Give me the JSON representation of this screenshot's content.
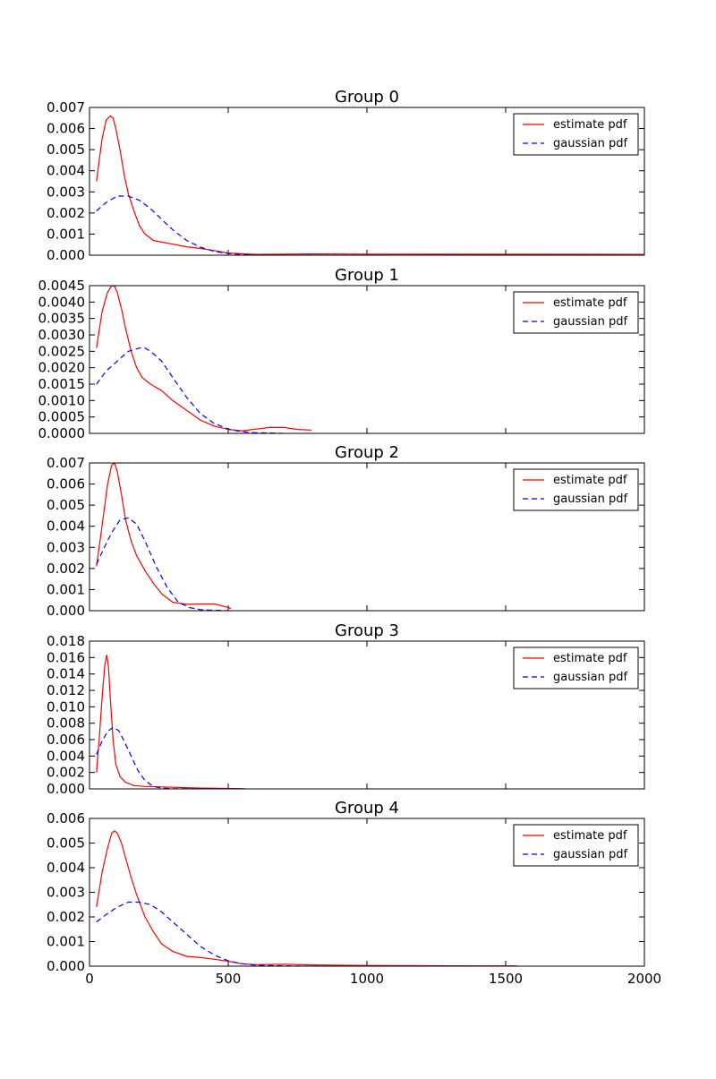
{
  "colors": {
    "estimate": "#ff0000",
    "gaussian": "#0000ff"
  },
  "chart_data": [
    {
      "type": "line",
      "title": "Group 0",
      "xlim": [
        0,
        2000
      ],
      "ylim": [
        0,
        0.007
      ],
      "yticks": [
        0,
        0.001,
        0.002,
        0.003,
        0.004,
        0.005,
        0.006,
        0.007
      ],
      "yticklabels": [
        "0.000",
        "0.001",
        "0.002",
        "0.003",
        "0.004",
        "0.005",
        "0.006",
        "0.007"
      ],
      "legend": {
        "placement": "upper right",
        "entries": [
          "estimate pdf",
          "gaussian pdf"
        ]
      },
      "series": [
        {
          "name": "estimate pdf",
          "style": "solid",
          "color": "red",
          "x": [
            25,
            45,
            60,
            75,
            85,
            95,
            110,
            125,
            140,
            160,
            180,
            200,
            230,
            260,
            300,
            350,
            400,
            450,
            500,
            600,
            800,
            1000,
            2000
          ],
          "y": [
            0.0035,
            0.0055,
            0.0064,
            0.0066,
            0.0065,
            0.006,
            0.005,
            0.0038,
            0.0029,
            0.0021,
            0.0014,
            0.001,
            0.0007,
            0.00062,
            0.00052,
            0.0004,
            0.00032,
            0.00022,
            0.0001,
            4e-05,
            6e-05,
            5e-05,
            4e-05
          ]
        },
        {
          "name": "gaussian pdf",
          "style": "dashed",
          "color": "blue",
          "x": [
            25,
            60,
            100,
            140,
            180,
            220,
            260,
            300,
            350,
            400,
            450,
            500,
            550,
            600,
            700,
            800,
            2000
          ],
          "y": [
            0.0021,
            0.0025,
            0.0028,
            0.0028,
            0.0026,
            0.0022,
            0.0017,
            0.0012,
            0.0007,
            0.00038,
            0.00018,
            8e-05,
            3e-05,
            1e-05,
            0.0,
            0.0,
            0.0
          ]
        }
      ]
    },
    {
      "type": "line",
      "title": "Group 1",
      "xlim": [
        0,
        2000
      ],
      "ylim": [
        0,
        0.0045
      ],
      "yticks": [
        0,
        0.0005,
        0.001,
        0.0015,
        0.002,
        0.0025,
        0.003,
        0.0035,
        0.004,
        0.0045
      ],
      "yticklabels": [
        "0.0000",
        "0.0005",
        "0.0010",
        "0.0015",
        "0.0020",
        "0.0025",
        "0.0030",
        "0.0035",
        "0.0040",
        "0.0045"
      ],
      "legend": {
        "placement": "upper right",
        "entries": [
          "estimate pdf",
          "gaussian pdf"
        ]
      },
      "series": [
        {
          "name": "estimate pdf",
          "style": "solid",
          "color": "red",
          "x": [
            25,
            45,
            65,
            80,
            90,
            100,
            115,
            130,
            150,
            170,
            190,
            220,
            260,
            300,
            350,
            400,
            450,
            500,
            550,
            600,
            650,
            700,
            750,
            800
          ],
          "y": [
            0.0026,
            0.0037,
            0.0043,
            0.0045,
            0.00448,
            0.0043,
            0.0038,
            0.0032,
            0.0025,
            0.002,
            0.0017,
            0.0015,
            0.0013,
            0.001,
            0.0007,
            0.0004,
            0.00022,
            0.00012,
            8e-05,
            0.00013,
            0.00018,
            0.00018,
            0.00012,
            0.0001
          ]
        },
        {
          "name": "gaussian pdf",
          "style": "dashed",
          "color": "blue",
          "x": [
            25,
            60,
            100,
            140,
            180,
            200,
            220,
            260,
            300,
            350,
            400,
            450,
            500,
            550,
            600,
            650,
            700
          ],
          "y": [
            0.0015,
            0.0019,
            0.0022,
            0.0025,
            0.0026,
            0.0026,
            0.0025,
            0.0022,
            0.0017,
            0.0011,
            0.0006,
            0.0003,
            0.00013,
            5e-05,
            2e-05,
            1e-05,
            0.0
          ]
        }
      ]
    },
    {
      "type": "line",
      "title": "Group 2",
      "xlim": [
        0,
        2000
      ],
      "ylim": [
        0,
        0.007
      ],
      "yticks": [
        0,
        0.001,
        0.002,
        0.003,
        0.004,
        0.005,
        0.006,
        0.007
      ],
      "yticklabels": [
        "0.000",
        "0.001",
        "0.002",
        "0.003",
        "0.004",
        "0.005",
        "0.006",
        "0.007"
      ],
      "legend": {
        "placement": "upper right",
        "entries": [
          "estimate pdf",
          "gaussian pdf"
        ]
      },
      "series": [
        {
          "name": "estimate pdf",
          "style": "solid",
          "color": "red",
          "x": [
            25,
            45,
            65,
            80,
            90,
            100,
            115,
            130,
            150,
            170,
            200,
            230,
            260,
            300,
            350,
            400,
            450,
            480,
            500,
            510
          ],
          "y": [
            0.0021,
            0.004,
            0.006,
            0.0069,
            0.007,
            0.0066,
            0.0055,
            0.0043,
            0.0033,
            0.0026,
            0.0019,
            0.0013,
            0.0008,
            0.0004,
            0.0003,
            0.00032,
            0.00032,
            0.00022,
            0.00015,
            0.0001
          ]
        },
        {
          "name": "gaussian pdf",
          "style": "dashed",
          "color": "blue",
          "x": [
            25,
            50,
            80,
            110,
            140,
            170,
            200,
            240,
            280,
            320,
            360,
            400,
            440,
            480,
            510
          ],
          "y": [
            0.0022,
            0.0029,
            0.0037,
            0.0043,
            0.0044,
            0.0041,
            0.0033,
            0.0021,
            0.0011,
            0.0004,
            0.00015,
            5e-05,
            2e-05,
            1e-05,
            0.0
          ]
        }
      ]
    },
    {
      "type": "line",
      "title": "Group 3",
      "xlim": [
        0,
        2000
      ],
      "ylim": [
        0,
        0.018
      ],
      "yticks": [
        0,
        0.002,
        0.004,
        0.006,
        0.008,
        0.01,
        0.012,
        0.014,
        0.016,
        0.018
      ],
      "yticklabels": [
        "0.000",
        "0.002",
        "0.004",
        "0.006",
        "0.008",
        "0.010",
        "0.012",
        "0.014",
        "0.016",
        "0.018"
      ],
      "legend": {
        "placement": "upper right",
        "entries": [
          "estimate pdf",
          "gaussian pdf"
        ]
      },
      "series": [
        {
          "name": "estimate pdf",
          "style": "solid",
          "color": "red",
          "x": [
            25,
            35,
            45,
            55,
            62,
            68,
            75,
            85,
            95,
            110,
            130,
            160,
            200,
            250,
            300,
            400,
            500,
            560
          ],
          "y": [
            0.002,
            0.006,
            0.011,
            0.015,
            0.0163,
            0.015,
            0.011,
            0.006,
            0.003,
            0.0015,
            0.0008,
            0.0004,
            0.0003,
            0.00025,
            0.0002,
            0.0001,
            5e-05,
            2e-05
          ]
        },
        {
          "name": "gaussian pdf",
          "style": "dashed",
          "color": "blue",
          "x": [
            25,
            45,
            65,
            85,
            105,
            125,
            150,
            175,
            200,
            230,
            260,
            300,
            400,
            500,
            560
          ],
          "y": [
            0.0042,
            0.0058,
            0.007,
            0.0075,
            0.0071,
            0.0058,
            0.004,
            0.0022,
            0.001,
            0.0003,
            0.0001,
            2e-05,
            0.0,
            0.0,
            0.0
          ]
        }
      ]
    },
    {
      "type": "line",
      "title": "Group 4",
      "xlim": [
        0,
        2000
      ],
      "ylim": [
        0,
        0.006
      ],
      "yticks": [
        0,
        0.001,
        0.002,
        0.003,
        0.004,
        0.005,
        0.006
      ],
      "yticklabels": [
        "0.000",
        "0.001",
        "0.002",
        "0.003",
        "0.004",
        "0.005",
        "0.006"
      ],
      "xticks": [
        0,
        500,
        1000,
        1500,
        2000
      ],
      "xticklabels": [
        "0",
        "500",
        "1000",
        "1500",
        "2000"
      ],
      "legend": {
        "placement": "upper right",
        "entries": [
          "estimate pdf",
          "gaussian pdf"
        ]
      },
      "series": [
        {
          "name": "estimate pdf",
          "style": "solid",
          "color": "red",
          "x": [
            25,
            45,
            65,
            80,
            90,
            100,
            115,
            130,
            150,
            170,
            200,
            230,
            260,
            300,
            350,
            400,
            450,
            500,
            550,
            600,
            700,
            800,
            1000,
            1200,
            1400,
            1540
          ],
          "y": [
            0.0024,
            0.0038,
            0.0048,
            0.0054,
            0.0055,
            0.0054,
            0.005,
            0.0044,
            0.0036,
            0.0029,
            0.002,
            0.0014,
            0.0009,
            0.0006,
            0.0004,
            0.00035,
            0.00028,
            0.0002,
            0.0001,
            6e-05,
            8e-05,
            5e-05,
            3e-05,
            2e-05,
            1e-05,
            1e-05
          ]
        },
        {
          "name": "gaussian pdf",
          "style": "dashed",
          "color": "blue",
          "x": [
            25,
            60,
            100,
            140,
            180,
            220,
            260,
            300,
            350,
            400,
            450,
            500,
            550,
            600,
            700,
            800,
            1000,
            1540
          ],
          "y": [
            0.0018,
            0.0021,
            0.0024,
            0.0026,
            0.0026,
            0.0025,
            0.0022,
            0.0018,
            0.0013,
            0.0008,
            0.00045,
            0.00022,
            0.0001,
            4e-05,
            1e-05,
            0.0,
            0.0,
            0.0
          ]
        }
      ]
    }
  ]
}
